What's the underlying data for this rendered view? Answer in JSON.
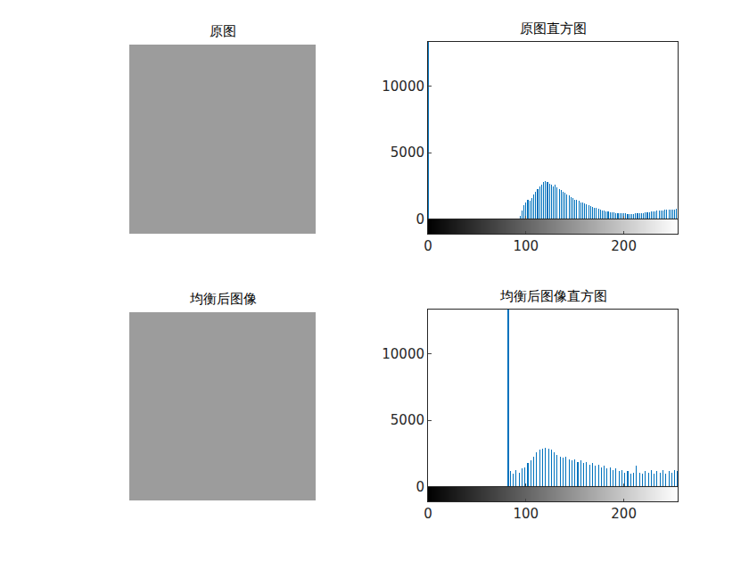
{
  "chart_data": [
    {
      "type": "image",
      "title": "原图"
    },
    {
      "type": "bar",
      "title": "原图直方图",
      "color": "#0072bd",
      "x": [
        0,
        92,
        94,
        96,
        98,
        100,
        102,
        104,
        106,
        108,
        110,
        112,
        114,
        116,
        118,
        120,
        122,
        124,
        126,
        128,
        130,
        132,
        134,
        136,
        138,
        140,
        142,
        144,
        146,
        148,
        150,
        152,
        154,
        156,
        158,
        160,
        162,
        164,
        166,
        168,
        170,
        172,
        174,
        176,
        178,
        180,
        182,
        184,
        186,
        188,
        190,
        192,
        194,
        196,
        198,
        200,
        202,
        204,
        206,
        208,
        210,
        212,
        214,
        216,
        218,
        220,
        222,
        224,
        226,
        228,
        230,
        232,
        234,
        236,
        238,
        240,
        242,
        244,
        246,
        248,
        250,
        252,
        254
      ],
      "values": [
        13300,
        100,
        300,
        700,
        1100,
        1300,
        1500,
        1400,
        1600,
        1900,
        2100,
        2300,
        2500,
        2600,
        2800,
        2900,
        2800,
        2700,
        2600,
        2500,
        2600,
        2400,
        2300,
        2200,
        2100,
        2000,
        1900,
        1800,
        1700,
        1600,
        1500,
        1450,
        1400,
        1300,
        1250,
        1200,
        1150,
        1100,
        1000,
        950,
        900,
        850,
        800,
        750,
        700,
        650,
        600,
        580,
        560,
        540,
        520,
        500,
        480,
        460,
        450,
        440,
        440,
        430,
        430,
        420,
        430,
        440,
        450,
        460,
        480,
        500,
        520,
        540,
        560,
        580,
        600,
        620,
        640,
        660,
        680,
        700,
        710,
        720,
        730,
        740,
        750,
        760,
        780
      ],
      "xlim": [
        0,
        255
      ],
      "xticks": [
        0,
        100,
        200
      ],
      "ylim": [
        0,
        13300
      ],
      "yticks": [
        0,
        5000,
        10000
      ]
    },
    {
      "type": "image",
      "title": "均衡后图像"
    },
    {
      "type": "bar",
      "title": "均衡后图像直方图",
      "color": "#0072bd",
      "x": [
        82,
        84,
        87,
        90,
        93,
        96,
        99,
        102,
        105,
        108,
        111,
        114,
        117,
        120,
        123,
        126,
        129,
        132,
        135,
        138,
        141,
        144,
        147,
        150,
        153,
        156,
        159,
        162,
        165,
        168,
        171,
        174,
        177,
        180,
        183,
        186,
        189,
        192,
        195,
        198,
        201,
        204,
        207,
        210,
        213,
        216,
        219,
        222,
        225,
        228,
        231,
        234,
        237,
        240,
        243,
        246,
        249,
        252,
        255
      ],
      "values": [
        13300,
        1200,
        1000,
        1300,
        1100,
        1400,
        1500,
        1800,
        2000,
        2300,
        2600,
        2800,
        2900,
        2950,
        2900,
        2800,
        2600,
        2400,
        2300,
        2200,
        2300,
        2100,
        2000,
        2100,
        1900,
        2000,
        1800,
        1900,
        1700,
        1800,
        1600,
        1700,
        1500,
        1600,
        1400,
        1500,
        1300,
        1400,
        1200,
        1300,
        1100,
        1200,
        1000,
        1100,
        1600,
        1100,
        1000,
        1200,
        1100,
        1300,
        1000,
        1200,
        1100,
        1300,
        1000,
        1200,
        1100,
        1300,
        1200
      ],
      "xlim": [
        0,
        255
      ],
      "xticks": [
        0,
        100,
        200
      ],
      "ylim": [
        0,
        13300
      ],
      "yticks": [
        0,
        5000,
        10000
      ]
    }
  ]
}
